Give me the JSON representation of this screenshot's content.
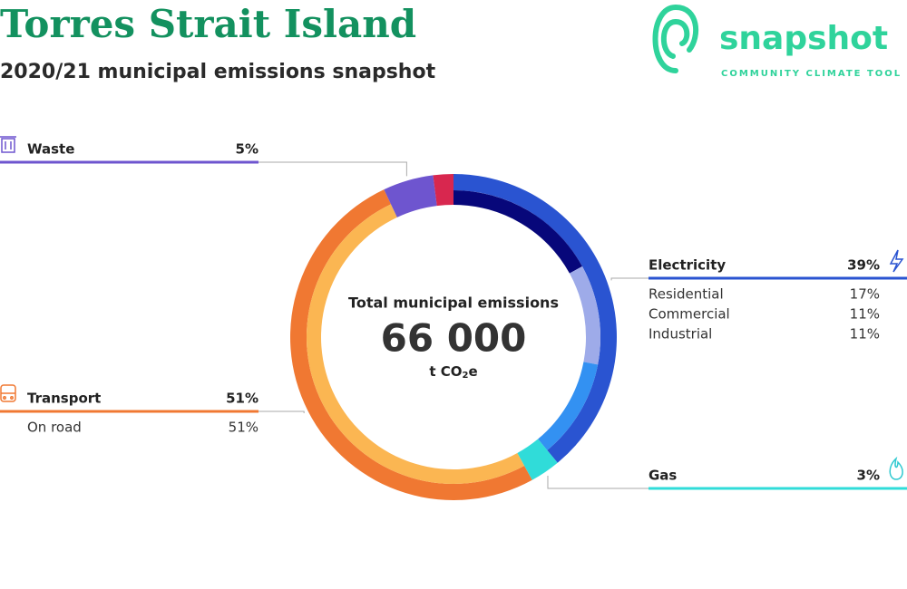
{
  "chart_data": {
    "type": "donut",
    "title": "Torres Strait Island",
    "subtitle": "2020/21 municipal emissions snapshot",
    "logo": {
      "name": "snapshot",
      "tagline": "COMMUNITY CLIMATE TOOL"
    },
    "center_label": "Total municipal emissions",
    "total": {
      "value": 66000,
      "label": "66 000"
    },
    "unit": {
      "text": "t CO",
      "sub": "2",
      "suffix": "e"
    },
    "sectors": [
      {
        "name": "Electricity",
        "value": 39,
        "value_label": "39%",
        "color": "#2a54d1",
        "subcategories": [
          {
            "name": "Residential",
            "value": 17,
            "value_label": "17%",
            "color": "#07077a"
          },
          {
            "name": "Commercial",
            "value": 11,
            "value_label": "11%",
            "color": "#9eabe9"
          },
          {
            "name": "Industrial",
            "value": 11,
            "value_label": "11%",
            "color": "#3391f2"
          }
        ]
      },
      {
        "name": "Gas",
        "value": 3,
        "value_label": "3%",
        "color": "#30dcd9"
      },
      {
        "name": "Transport",
        "value": 51,
        "value_label": "51%",
        "color": "#f07832",
        "subcategories": [
          {
            "name": "On road",
            "value": 51,
            "value_label": "51%",
            "color": "#fbb652"
          }
        ]
      },
      {
        "name": "Waste",
        "value": 5,
        "value_label": "5%",
        "color": "#6e55cf"
      },
      {
        "name": null,
        "value": 2,
        "color": "#d8274f"
      }
    ]
  }
}
